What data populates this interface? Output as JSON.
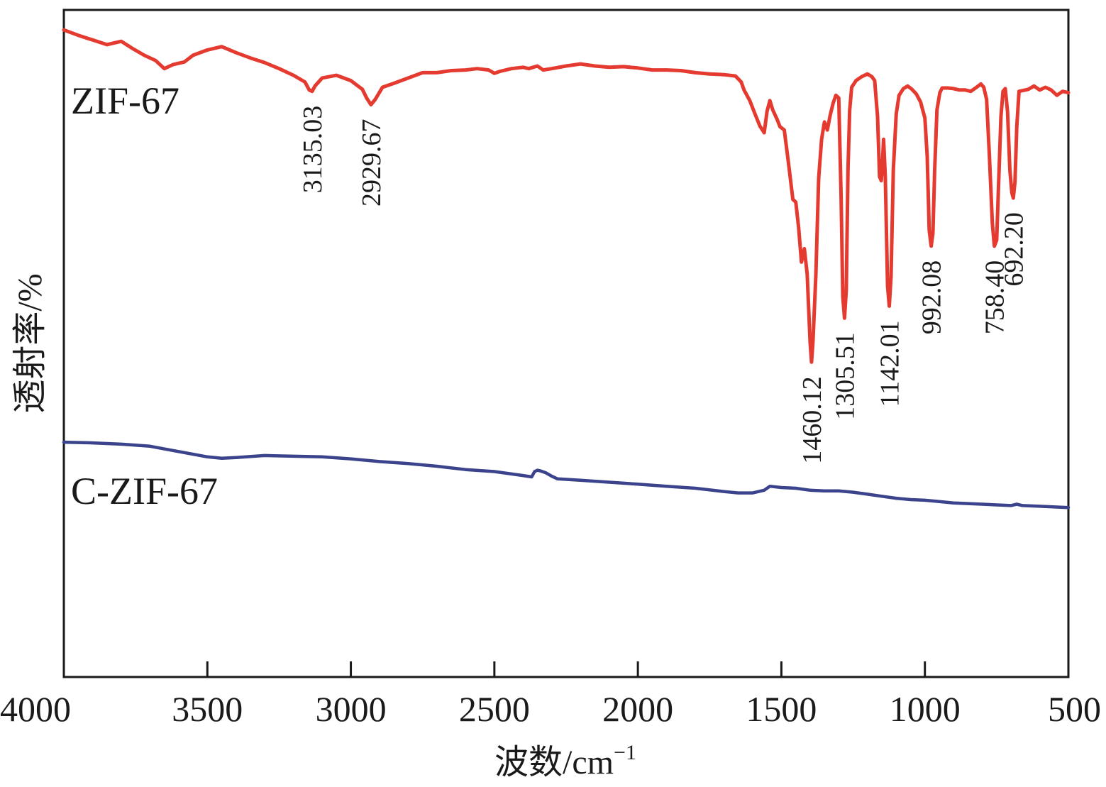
{
  "chart_data": {
    "type": "line",
    "title": "",
    "xlabel": "波数/cm",
    "xlabel_superscript": "−1",
    "ylabel": "透射率/%",
    "xlim": [
      4000,
      500
    ],
    "x_reversed": true,
    "ylim": [
      0,
      100
    ],
    "grid": false,
    "x_ticks": [
      4000,
      3500,
      3000,
      2500,
      2000,
      1500,
      1000,
      500
    ],
    "series": [
      {
        "name": "ZIF-67",
        "color": "#e53a2f",
        "points": [
          [
            4000,
            97
          ],
          [
            3950,
            96.2
          ],
          [
            3900,
            95.5
          ],
          [
            3850,
            94.8
          ],
          [
            3800,
            95.3
          ],
          [
            3760,
            94.2
          ],
          [
            3720,
            93.2
          ],
          [
            3680,
            92.4
          ],
          [
            3650,
            91.2
          ],
          [
            3620,
            91.8
          ],
          [
            3580,
            92.2
          ],
          [
            3550,
            93.2
          ],
          [
            3500,
            94.0
          ],
          [
            3450,
            94.5
          ],
          [
            3400,
            93.6
          ],
          [
            3350,
            92.8
          ],
          [
            3300,
            92.1
          ],
          [
            3250,
            91.2
          ],
          [
            3200,
            90.2
          ],
          [
            3160,
            89.2
          ],
          [
            3145,
            88.0
          ],
          [
            3135,
            87.8
          ],
          [
            3125,
            88.6
          ],
          [
            3100,
            89.8
          ],
          [
            3050,
            90.2
          ],
          [
            3000,
            89.4
          ],
          [
            2960,
            88.1
          ],
          [
            2945,
            86.8
          ],
          [
            2930,
            85.8
          ],
          [
            2915,
            86.6
          ],
          [
            2890,
            88.4
          ],
          [
            2850,
            89.0
          ],
          [
            2800,
            89.8
          ],
          [
            2750,
            90.6
          ],
          [
            2700,
            90.6
          ],
          [
            2650,
            90.9
          ],
          [
            2600,
            91.0
          ],
          [
            2560,
            91.2
          ],
          [
            2520,
            91.0
          ],
          [
            2500,
            90.5
          ],
          [
            2480,
            90.8
          ],
          [
            2440,
            91.2
          ],
          [
            2400,
            91.4
          ],
          [
            2380,
            91.2
          ],
          [
            2350,
            91.6
          ],
          [
            2330,
            91.0
          ],
          [
            2300,
            91.2
          ],
          [
            2250,
            91.6
          ],
          [
            2200,
            91.9
          ],
          [
            2150,
            91.6
          ],
          [
            2100,
            91.4
          ],
          [
            2050,
            91.5
          ],
          [
            2000,
            91.3
          ],
          [
            1950,
            91.0
          ],
          [
            1900,
            91.0
          ],
          [
            1850,
            90.9
          ],
          [
            1800,
            90.6
          ],
          [
            1750,
            90.4
          ],
          [
            1700,
            90.3
          ],
          [
            1660,
            90.1
          ],
          [
            1640,
            89.2
          ],
          [
            1630,
            88.0
          ],
          [
            1610,
            86.4
          ],
          [
            1590,
            84.2
          ],
          [
            1575,
            82.6
          ],
          [
            1560,
            81.6
          ],
          [
            1550,
            84.8
          ],
          [
            1540,
            86.4
          ],
          [
            1530,
            85.0
          ],
          [
            1515,
            83.6
          ],
          [
            1505,
            82.5
          ],
          [
            1490,
            82.0
          ],
          [
            1475,
            77.0
          ],
          [
            1460,
            71.6
          ],
          [
            1450,
            71.2
          ],
          [
            1440,
            67.4
          ],
          [
            1430,
            62.2
          ],
          [
            1420,
            64.2
          ],
          [
            1410,
            60.4
          ],
          [
            1400,
            50.2
          ],
          [
            1395,
            47.2
          ],
          [
            1390,
            50.2
          ],
          [
            1380,
            60.2
          ],
          [
            1370,
            74.8
          ],
          [
            1360,
            80.6
          ],
          [
            1350,
            83.2
          ],
          [
            1340,
            82.0
          ],
          [
            1330,
            84.2
          ],
          [
            1320,
            86.0
          ],
          [
            1310,
            87.2
          ],
          [
            1300,
            86.8
          ],
          [
            1292,
            72.0
          ],
          [
            1286,
            57.0
          ],
          [
            1280,
            53.8
          ],
          [
            1274,
            58.0
          ],
          [
            1268,
            76.0
          ],
          [
            1262,
            85.0
          ],
          [
            1255,
            88.4
          ],
          [
            1240,
            89.4
          ],
          [
            1220,
            90.0
          ],
          [
            1200,
            90.4
          ],
          [
            1185,
            90.0
          ],
          [
            1175,
            89.4
          ],
          [
            1165,
            84.0
          ],
          [
            1158,
            75.0
          ],
          [
            1152,
            74.4
          ],
          [
            1148,
            77.0
          ],
          [
            1144,
            80.6
          ],
          [
            1138,
            75.0
          ],
          [
            1130,
            58.6
          ],
          [
            1124,
            55.6
          ],
          [
            1118,
            60.0
          ],
          [
            1110,
            76.0
          ],
          [
            1100,
            84.4
          ],
          [
            1090,
            87.2
          ],
          [
            1075,
            88.2
          ],
          [
            1060,
            88.6
          ],
          [
            1045,
            88.1
          ],
          [
            1030,
            87.4
          ],
          [
            1015,
            86.2
          ],
          [
            1000,
            83.8
          ],
          [
            992,
            78.0
          ],
          [
            985,
            67.0
          ],
          [
            978,
            64.6
          ],
          [
            972,
            66.5
          ],
          [
            966,
            76.0
          ],
          [
            958,
            85.0
          ],
          [
            948,
            87.6
          ],
          [
            940,
            88.3
          ],
          [
            920,
            88.3
          ],
          [
            900,
            88.2
          ],
          [
            880,
            88.0
          ],
          [
            860,
            88.0
          ],
          [
            840,
            87.8
          ],
          [
            820,
            88.4
          ],
          [
            805,
            88.9
          ],
          [
            795,
            88.4
          ],
          [
            785,
            86.6
          ],
          [
            775,
            78.0
          ],
          [
            765,
            68.0
          ],
          [
            758,
            64.6
          ],
          [
            750,
            65.5
          ],
          [
            742,
            75.4
          ],
          [
            735,
            84.0
          ],
          [
            728,
            87.8
          ],
          [
            720,
            88.2
          ],
          [
            712,
            84.8
          ],
          [
            704,
            76.0
          ],
          [
            697,
            72.6
          ],
          [
            692,
            71.8
          ],
          [
            686,
            74.2
          ],
          [
            680,
            82.4
          ],
          [
            672,
            87.8
          ],
          [
            660,
            87.9
          ],
          [
            640,
            88.1
          ],
          [
            620,
            88.6
          ],
          [
            600,
            88.0
          ],
          [
            580,
            88.4
          ],
          [
            560,
            88.0
          ],
          [
            540,
            87.2
          ],
          [
            520,
            87.8
          ],
          [
            500,
            87.6
          ]
        ]
      },
      {
        "name": "C-ZIF-67",
        "color": "#3a438b",
        "points": [
          [
            4000,
            35.2
          ],
          [
            3900,
            35.1
          ],
          [
            3800,
            34.9
          ],
          [
            3700,
            34.6
          ],
          [
            3600,
            33.8
          ],
          [
            3500,
            33.0
          ],
          [
            3450,
            32.8
          ],
          [
            3400,
            32.9
          ],
          [
            3300,
            33.2
          ],
          [
            3200,
            33.1
          ],
          [
            3100,
            33.0
          ],
          [
            3000,
            32.7
          ],
          [
            2900,
            32.3
          ],
          [
            2800,
            32.0
          ],
          [
            2700,
            31.6
          ],
          [
            2600,
            31.1
          ],
          [
            2500,
            30.8
          ],
          [
            2400,
            30.2
          ],
          [
            2370,
            30.0
          ],
          [
            2360,
            30.8
          ],
          [
            2350,
            31.0
          ],
          [
            2340,
            30.9
          ],
          [
            2320,
            30.6
          ],
          [
            2300,
            30.1
          ],
          [
            2280,
            29.7
          ],
          [
            2200,
            29.5
          ],
          [
            2100,
            29.2
          ],
          [
            2000,
            28.9
          ],
          [
            1900,
            28.6
          ],
          [
            1800,
            28.3
          ],
          [
            1700,
            27.8
          ],
          [
            1650,
            27.6
          ],
          [
            1600,
            27.6
          ],
          [
            1560,
            28.0
          ],
          [
            1540,
            28.6
          ],
          [
            1500,
            28.4
          ],
          [
            1450,
            28.3
          ],
          [
            1400,
            28.0
          ],
          [
            1350,
            27.9
          ],
          [
            1300,
            27.9
          ],
          [
            1250,
            27.7
          ],
          [
            1200,
            27.4
          ],
          [
            1150,
            27.1
          ],
          [
            1100,
            26.8
          ],
          [
            1050,
            26.6
          ],
          [
            1000,
            26.5
          ],
          [
            950,
            26.3
          ],
          [
            900,
            26.1
          ],
          [
            850,
            26.0
          ],
          [
            800,
            25.9
          ],
          [
            750,
            25.8
          ],
          [
            700,
            25.7
          ],
          [
            680,
            25.9
          ],
          [
            660,
            25.7
          ],
          [
            600,
            25.6
          ],
          [
            500,
            25.4
          ]
        ]
      }
    ],
    "series_labels": [
      "ZIF-67",
      "C-ZIF-67"
    ],
    "annotations": [
      {
        "text": "3135.03",
        "x": 3135,
        "series": "ZIF-67"
      },
      {
        "text": "2929.67",
        "x": 2930,
        "series": "ZIF-67"
      },
      {
        "text": "1460.12",
        "x": 1395,
        "series": "ZIF-67"
      },
      {
        "text": "1305.51",
        "x": 1280,
        "series": "ZIF-67"
      },
      {
        "text": "1142.01",
        "x": 1124,
        "series": "ZIF-67"
      },
      {
        "text": "992.08",
        "x": 978,
        "series": "ZIF-67"
      },
      {
        "text": "758.40",
        "x": 758,
        "series": "ZIF-67"
      },
      {
        "text": "692.20",
        "x": 692,
        "series": "ZIF-67"
      }
    ]
  }
}
